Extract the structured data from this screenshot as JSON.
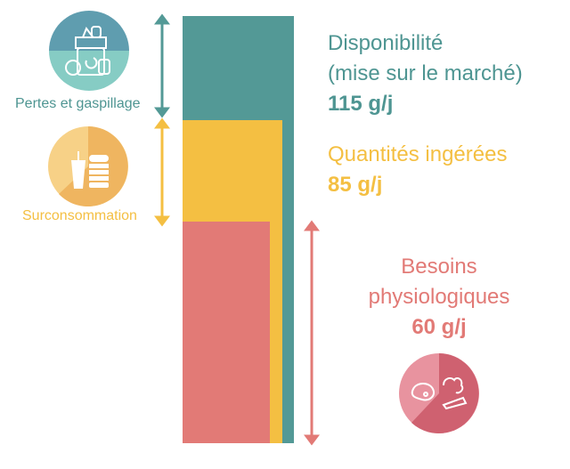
{
  "colors": {
    "availability": "#539996",
    "intake": "#F4BF42",
    "needs": "#E27A76"
  },
  "left": {
    "losses": {
      "label": "Pertes et gaspillage",
      "icon": "food-waste-recycle-icon"
    },
    "overconsumption": {
      "label": "Surconsommation",
      "icon": "fast-food-icon"
    }
  },
  "right": {
    "availability": {
      "line1": "Disponibilité",
      "line2": "(mise sur le marché)",
      "value": "115 g/j"
    },
    "intake": {
      "line1": "Quantités ingérées",
      "value": "85 g/j"
    },
    "needs": {
      "line1": "Besoins",
      "line2": "physiologiques",
      "value": "60 g/j",
      "icon": "meat-vegetables-icon"
    }
  },
  "bars": [
    {
      "name": "availability",
      "value": 115
    },
    {
      "name": "intake",
      "value": 85
    },
    {
      "name": "needs",
      "value": 60
    }
  ]
}
